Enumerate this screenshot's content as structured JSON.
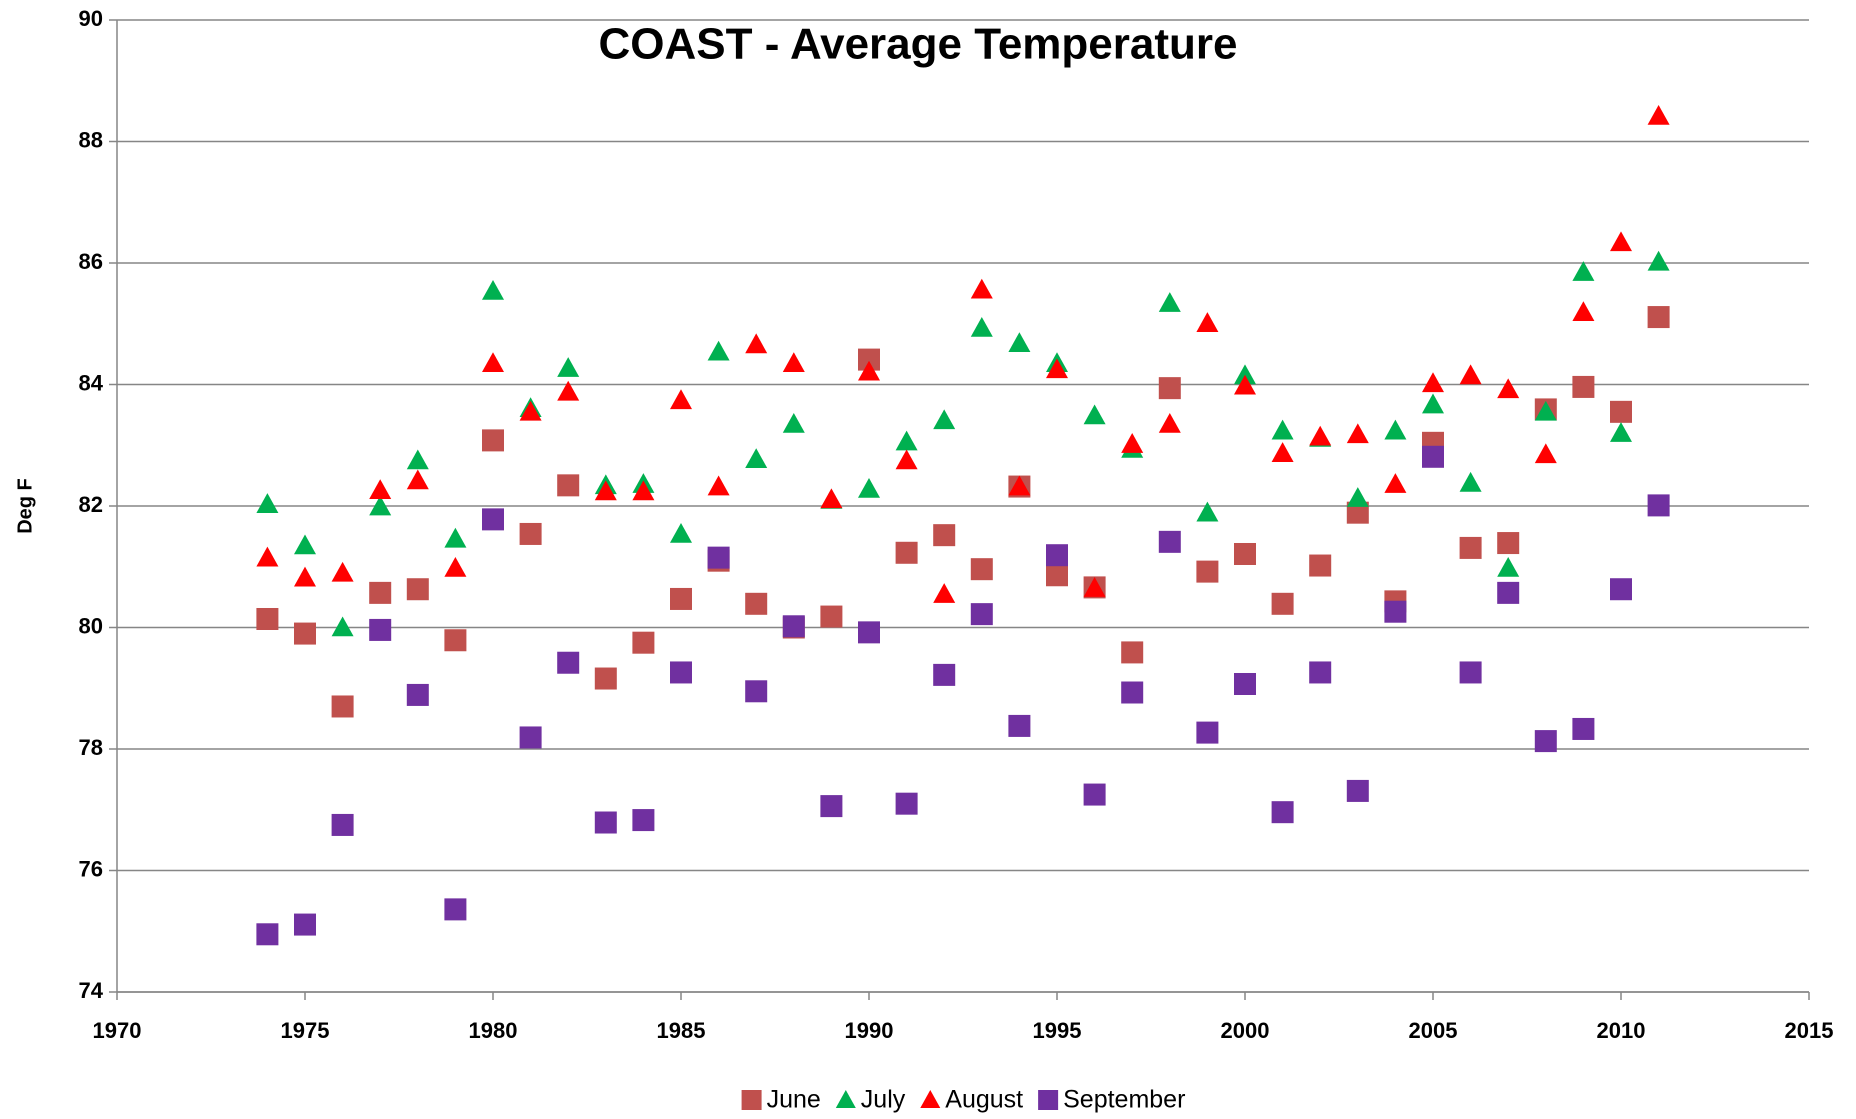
{
  "chart_data": {
    "type": "scatter",
    "title": "COAST - Average Temperature",
    "y_label": "Deg F",
    "x": [
      1974,
      1975,
      1976,
      1977,
      1978,
      1979,
      1980,
      1981,
      1982,
      1983,
      1984,
      1985,
      1986,
      1987,
      1988,
      1989,
      1990,
      1991,
      1992,
      1993,
      1994,
      1995,
      1996,
      1997,
      1998,
      1999,
      2000,
      2001,
      2002,
      2003,
      2004,
      2005,
      2006,
      2007,
      2008,
      2009,
      2010,
      2011
    ],
    "series": [
      {
        "name": "June",
        "color": "#c0504d",
        "marker": "square",
        "values": [
          80.14,
          79.9,
          78.7,
          80.57,
          80.63,
          79.79,
          83.08,
          81.54,
          82.34,
          79.16,
          79.75,
          80.47,
          81.1,
          80.39,
          80.0,
          80.18,
          84.41,
          81.23,
          81.52,
          80.96,
          82.32,
          80.86,
          80.66,
          79.59,
          83.94,
          80.92,
          81.21,
          80.39,
          81.02,
          81.89,
          80.43,
          83.04,
          81.31,
          81.39,
          83.59,
          83.96,
          83.55,
          85.11
        ]
      },
      {
        "name": "July",
        "color": "#00b050",
        "marker": "triangle",
        "values": [
          82.03,
          81.35,
          80.0,
          81.99,
          82.75,
          81.46,
          85.54,
          83.61,
          84.27,
          82.34,
          82.36,
          81.54,
          84.54,
          82.77,
          83.35,
          82.1,
          82.28,
          83.06,
          83.41,
          84.93,
          84.68,
          84.35,
          83.49,
          82.94,
          85.34,
          81.89,
          84.15,
          83.24,
          83.12,
          82.13,
          83.24,
          83.67,
          82.38,
          80.98,
          83.55,
          85.85,
          83.2,
          86.02
        ]
      },
      {
        "name": "August",
        "color": "#ff0000",
        "marker": "triangle",
        "values": [
          81.15,
          80.82,
          80.9,
          82.26,
          82.42,
          80.98,
          84.35,
          83.55,
          83.88,
          82.24,
          82.24,
          83.74,
          82.32,
          84.66,
          84.35,
          82.11,
          84.21,
          82.75,
          80.55,
          85.56,
          82.32,
          84.25,
          80.65,
          83.02,
          83.35,
          85.01,
          83.98,
          82.87,
          83.14,
          83.18,
          82.36,
          84.02,
          84.15,
          83.92,
          82.85,
          85.19,
          86.34,
          88.42
        ]
      },
      {
        "name": "September",
        "color": "#7030a0",
        "marker": "square",
        "values": [
          74.95,
          75.11,
          76.75,
          79.96,
          78.89,
          75.36,
          81.78,
          78.19,
          79.42,
          76.79,
          76.83,
          79.26,
          81.15,
          78.95,
          80.02,
          77.06,
          79.92,
          77.1,
          79.22,
          80.22,
          78.38,
          81.19,
          77.25,
          78.93,
          81.41,
          78.27,
          79.07,
          76.96,
          79.26,
          77.31,
          80.26,
          82.81,
          79.26,
          80.57,
          78.13,
          78.33,
          80.63,
          82.01
        ]
      }
    ],
    "xlim": [
      1970,
      2015
    ],
    "xticks": [
      1970,
      1975,
      1980,
      1985,
      1990,
      1995,
      2000,
      2005,
      2010,
      2015
    ],
    "ylim": [
      74,
      90
    ],
    "yticks": [
      74,
      76,
      78,
      80,
      82,
      84,
      86,
      88,
      90
    ],
    "grid": true,
    "legend": "bottom"
  }
}
